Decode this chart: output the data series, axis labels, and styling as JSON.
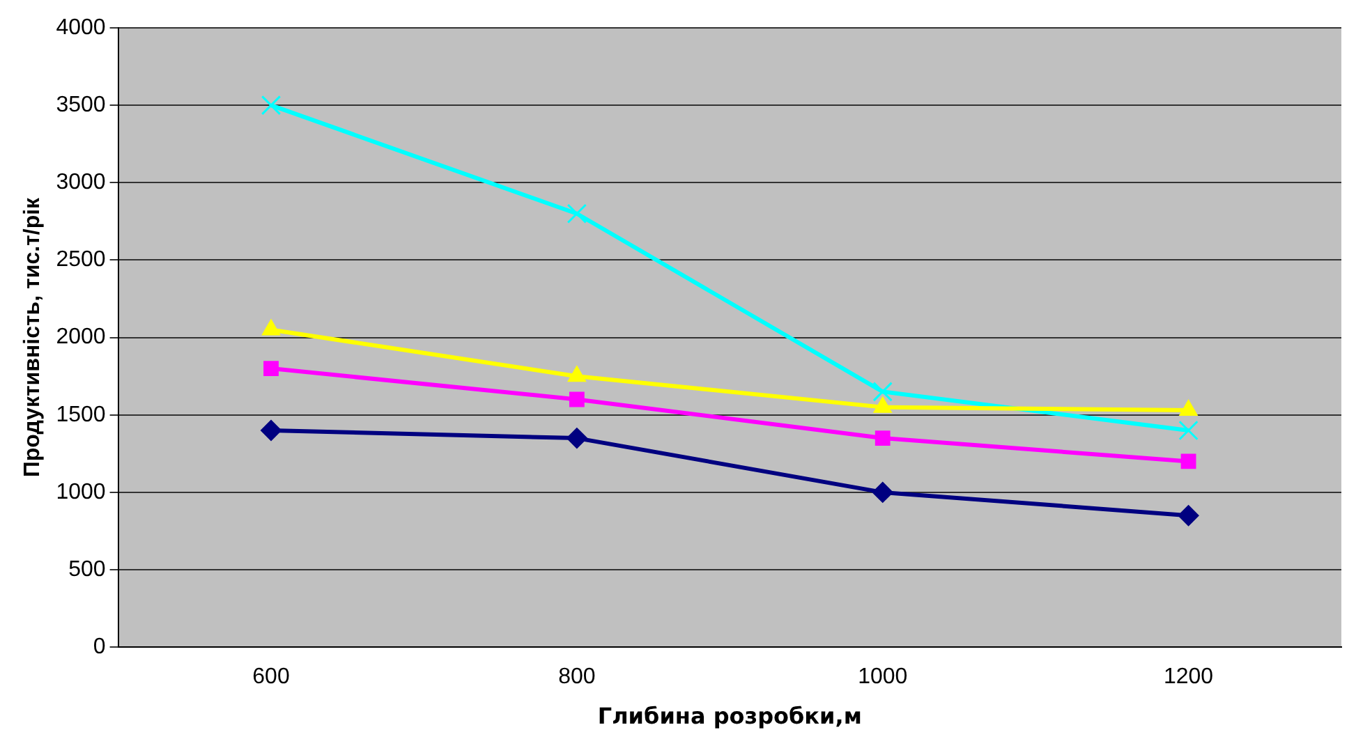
{
  "chart_data": {
    "type": "line",
    "xlabel": "Глибина розробки,м",
    "ylabel": "Продуктивність, тис.т/рік",
    "categories": [
      "600",
      "800",
      "1000",
      "1200"
    ],
    "series": [
      {
        "color": "#000080",
        "marker": "diamond",
        "values": [
          1400,
          1350,
          1000,
          850
        ]
      },
      {
        "color": "#ff00ff",
        "marker": "square",
        "values": [
          1800,
          1600,
          1350,
          1200
        ]
      },
      {
        "color": "#ffff00",
        "marker": "triangle",
        "values": [
          2050,
          1750,
          1550,
          1530
        ]
      },
      {
        "color": "#00ffff",
        "marker": "cross",
        "values": [
          3500,
          2800,
          1650,
          1400
        ]
      }
    ],
    "ylim": [
      0,
      4000
    ],
    "yticks": [
      0,
      500,
      1000,
      1500,
      2000,
      2500,
      3000,
      3500,
      4000
    ],
    "grid": "y",
    "legend": false
  }
}
